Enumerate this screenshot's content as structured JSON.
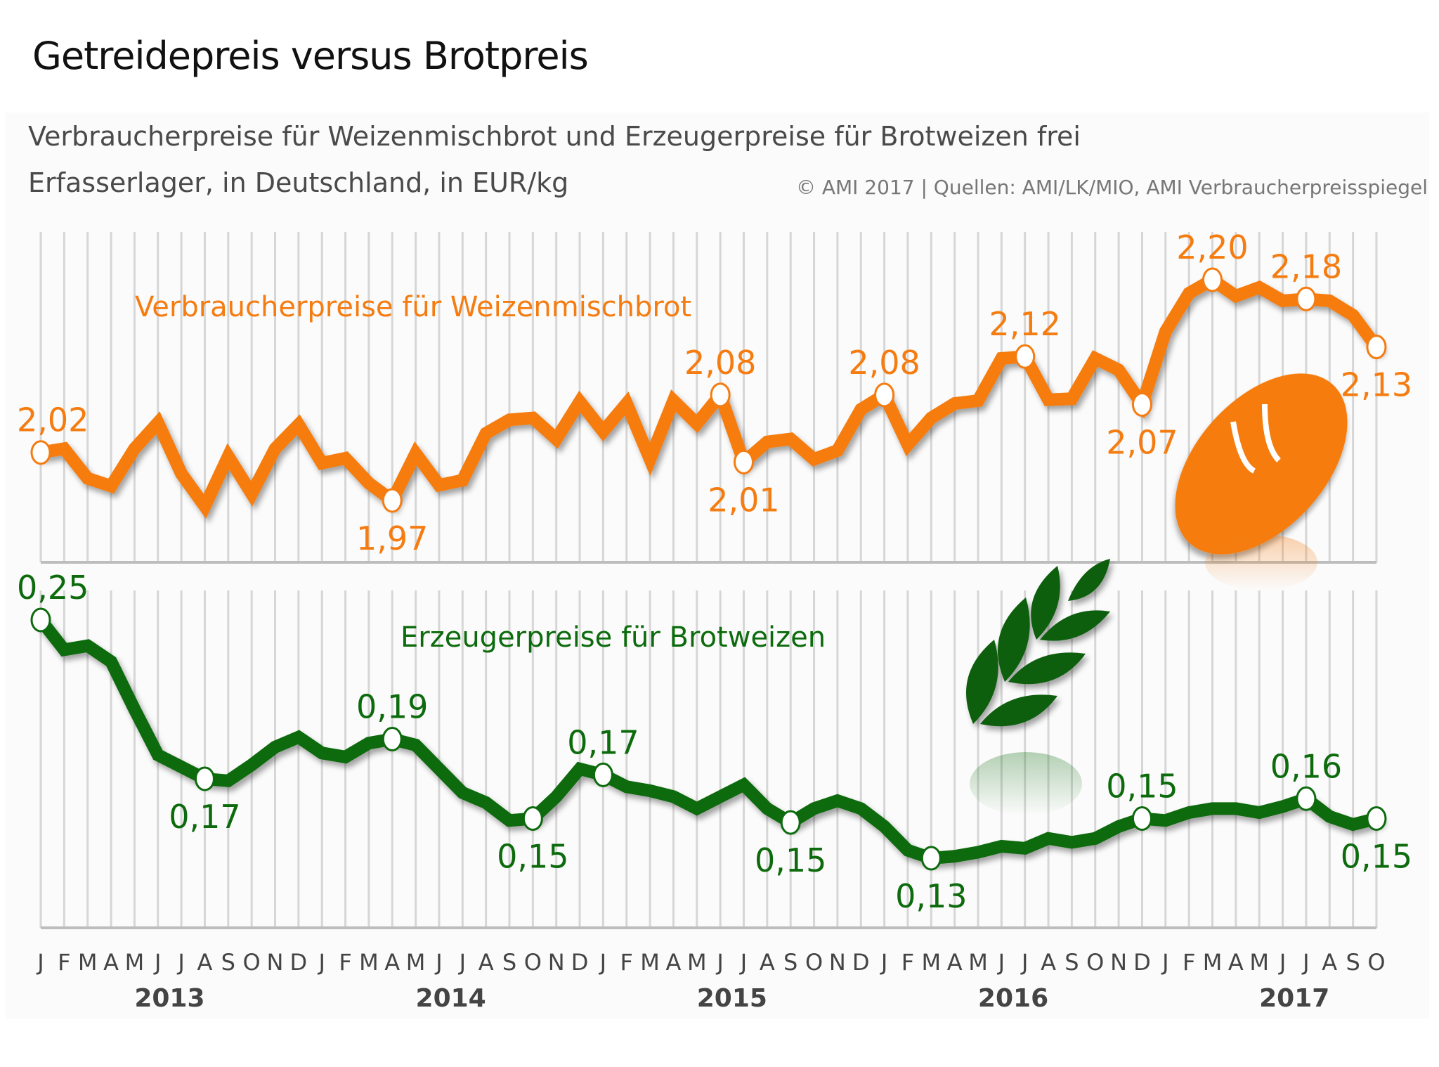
{
  "header": {
    "title": "Getreidepreis versus Brotpreis",
    "subtitle_line1": "Verbraucherpreise für Weizenmischbrot und Erzeugerpreise für Brotweizen frei",
    "subtitle_line2": "Erfasserlager, in Deutschland, in EUR/kg",
    "source": "© AMI 2017 | Quellen: AMI/LK/MIO, AMI Verbraucherpreisspiegel"
  },
  "colors": {
    "orange": "#f57c10",
    "green": "#0d6b0d",
    "grid": "#d6d6d6"
  },
  "icons": {
    "orange_panel": "bread-icon",
    "green_panel": "wheat-icon"
  },
  "chart_data": [
    {
      "type": "line",
      "title": "Verbraucherpreise für Weizenmischbrot",
      "unit": "EUR/kg",
      "x": [
        "J",
        "F",
        "M",
        "A",
        "M",
        "J",
        "J",
        "A",
        "S",
        "O",
        "N",
        "D",
        "J",
        "F",
        "M",
        "A",
        "M",
        "J",
        "J",
        "A",
        "S",
        "O",
        "N",
        "D",
        "J",
        "F",
        "M",
        "A",
        "M",
        "J",
        "J",
        "A",
        "S",
        "O",
        "N",
        "D",
        "J",
        "F",
        "M",
        "A",
        "M",
        "J",
        "J",
        "A",
        "S",
        "O",
        "N",
        "D",
        "J",
        "F",
        "M",
        "A",
        "M",
        "J",
        "J",
        "A",
        "S",
        "O"
      ],
      "years": [
        {
          "label": "2013",
          "start": 0
        },
        {
          "label": "2014",
          "start": 12
        },
        {
          "label": "2015",
          "start": 24
        },
        {
          "label": "2016",
          "start": 36
        },
        {
          "label": "2017",
          "start": 48
        }
      ],
      "ylim": [
        1.95,
        2.22
      ],
      "grid": true,
      "series": [
        {
          "name": "Verbraucherpreise für Weizenmischbrot",
          "values": [
            2.02,
            2.024,
            1.993,
            1.985,
            2.024,
            2.051,
            1.998,
            1.964,
            2.016,
            1.977,
            2.024,
            2.049,
            2.009,
            2.014,
            1.988,
            1.97,
            2.019,
            1.986,
            1.991,
            2.04,
            2.054,
            2.056,
            2.034,
            2.073,
            2.042,
            2.071,
            2.013,
            2.074,
            2.05,
            2.08,
            2.01,
            2.031,
            2.034,
            2.013,
            2.022,
            2.065,
            2.08,
            2.028,
            2.056,
            2.071,
            2.074,
            2.118,
            2.12,
            2.075,
            2.076,
            2.118,
            2.106,
            2.07,
            2.146,
            2.186,
            2.2,
            2.183,
            2.192,
            2.178,
            2.18,
            2.178,
            2.163,
            2.13
          ]
        }
      ],
      "annotations": [
        {
          "index": 0,
          "label": "2,02",
          "pos": "above"
        },
        {
          "index": 15,
          "label": "1,97",
          "pos": "below"
        },
        {
          "index": 29,
          "label": "2,08",
          "pos": "above"
        },
        {
          "index": 30,
          "label": "2,01",
          "pos": "below"
        },
        {
          "index": 36,
          "label": "2,08",
          "pos": "above"
        },
        {
          "index": 42,
          "label": "2,12",
          "pos": "above"
        },
        {
          "index": 47,
          "label": "2,07",
          "pos": "below"
        },
        {
          "index": 50,
          "label": "2,20",
          "pos": "above"
        },
        {
          "index": 54,
          "label": "2,18",
          "pos": "above"
        },
        {
          "index": 57,
          "label": "2,13",
          "pos": "below"
        }
      ]
    },
    {
      "type": "line",
      "title": "Erzeugerpreise für Brotweizen",
      "unit": "EUR/kg",
      "x": [
        "J",
        "F",
        "M",
        "A",
        "M",
        "J",
        "J",
        "A",
        "S",
        "O",
        "N",
        "D",
        "J",
        "F",
        "M",
        "A",
        "M",
        "J",
        "J",
        "A",
        "S",
        "O",
        "N",
        "D",
        "J",
        "F",
        "M",
        "A",
        "M",
        "J",
        "J",
        "A",
        "S",
        "O",
        "N",
        "D",
        "J",
        "F",
        "M",
        "A",
        "M",
        "J",
        "J",
        "A",
        "S",
        "O",
        "N",
        "D",
        "J",
        "F",
        "M",
        "A",
        "M",
        "J",
        "J",
        "A",
        "S",
        "O"
      ],
      "ylim": [
        0.11,
        0.26
      ],
      "grid": true,
      "series": [
        {
          "name": "Erzeugerpreise für Brotweizen",
          "values": [
            0.25,
            0.235,
            0.237,
            0.229,
            0.205,
            0.182,
            0.176,
            0.17,
            0.169,
            0.177,
            0.186,
            0.191,
            0.183,
            0.181,
            0.188,
            0.19,
            0.187,
            0.175,
            0.163,
            0.158,
            0.149,
            0.15,
            0.161,
            0.175,
            0.172,
            0.166,
            0.164,
            0.161,
            0.155,
            0.161,
            0.167,
            0.155,
            0.148,
            0.155,
            0.159,
            0.155,
            0.146,
            0.134,
            0.13,
            0.131,
            0.133,
            0.136,
            0.135,
            0.14,
            0.138,
            0.14,
            0.146,
            0.15,
            0.149,
            0.153,
            0.155,
            0.155,
            0.153,
            0.156,
            0.16,
            0.151,
            0.147,
            0.15
          ]
        }
      ],
      "annotations": [
        {
          "index": 0,
          "label": "0,25",
          "pos": "above"
        },
        {
          "index": 7,
          "label": "0,17",
          "pos": "below"
        },
        {
          "index": 15,
          "label": "0,19",
          "pos": "above"
        },
        {
          "index": 21,
          "label": "0,15",
          "pos": "below"
        },
        {
          "index": 24,
          "label": "0,17",
          "pos": "above"
        },
        {
          "index": 32,
          "label": "0,15",
          "pos": "below"
        },
        {
          "index": 38,
          "label": "0,13",
          "pos": "below"
        },
        {
          "index": 47,
          "label": "0,15",
          "pos": "above"
        },
        {
          "index": 54,
          "label": "0,16",
          "pos": "above"
        },
        {
          "index": 57,
          "label": "0,15",
          "pos": "below"
        }
      ]
    }
  ]
}
